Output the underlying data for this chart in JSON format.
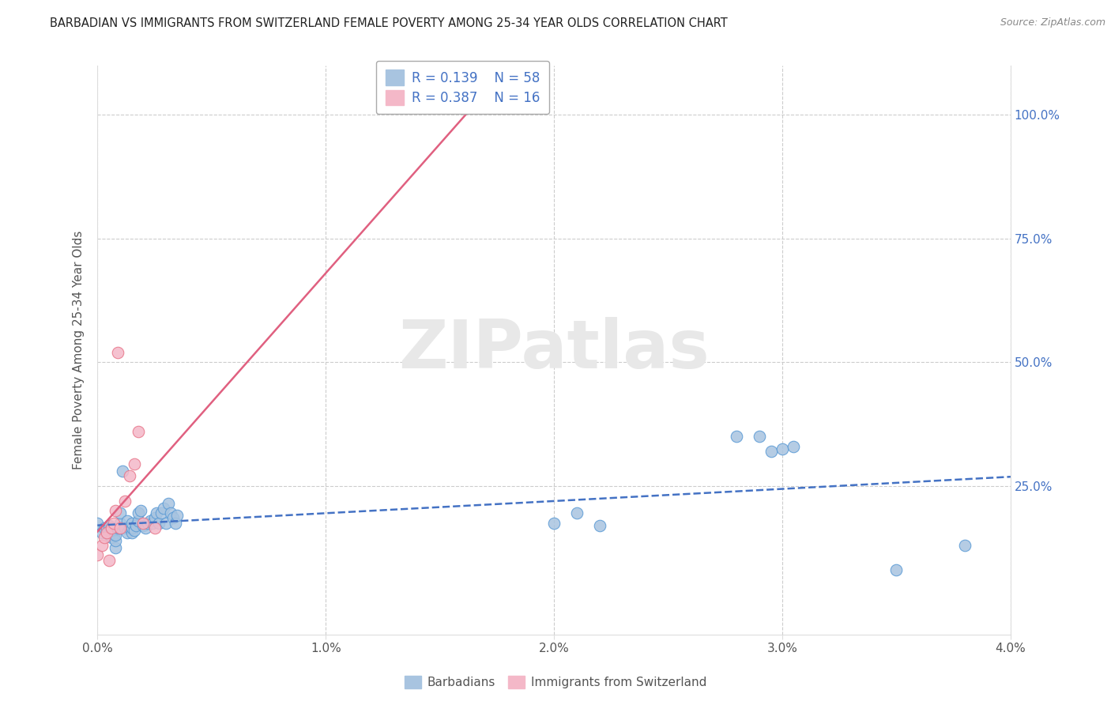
{
  "title": "BARBADIAN VS IMMIGRANTS FROM SWITZERLAND FEMALE POVERTY AMONG 25-34 YEAR OLDS CORRELATION CHART",
  "source": "Source: ZipAtlas.com",
  "ylabel": "Female Poverty Among 25-34 Year Olds",
  "xlim": [
    0.0,
    0.04
  ],
  "ylim": [
    -0.05,
    1.1
  ],
  "xtick_labels": [
    "0.0%",
    "1.0%",
    "2.0%",
    "3.0%",
    "4.0%"
  ],
  "xtick_vals": [
    0.0,
    0.01,
    0.02,
    0.03,
    0.04
  ],
  "ytick_labels": [
    "25.0%",
    "50.0%",
    "75.0%",
    "100.0%"
  ],
  "ytick_vals": [
    0.25,
    0.5,
    0.75,
    1.0
  ],
  "barbadian_color": "#a8c4e0",
  "barbadian_color_dark": "#5b9bd5",
  "swiss_color": "#f4b8c8",
  "swiss_color_dark": "#e8768a",
  "trend_color_blue": "#4472c4",
  "trend_color_pink": "#e06080",
  "legend_r1": "0.139",
  "legend_n1": "58",
  "legend_r2": "0.387",
  "legend_n2": "16",
  "barbadian_x": [
    0.0,
    0.0002,
    0.0003,
    0.0004,
    0.0004,
    0.0005,
    0.0005,
    0.0005,
    0.0006,
    0.0006,
    0.0007,
    0.0007,
    0.0008,
    0.0008,
    0.0008,
    0.0009,
    0.001,
    0.001,
    0.001,
    0.0011,
    0.0012,
    0.0013,
    0.0013,
    0.0014,
    0.0015,
    0.0015,
    0.0015,
    0.0016,
    0.0017,
    0.0018,
    0.0018,
    0.0019,
    0.002,
    0.0021,
    0.0022,
    0.0023,
    0.0024,
    0.0025,
    0.0026,
    0.0027,
    0.0028,
    0.0029,
    0.003,
    0.0031,
    0.0032,
    0.0033,
    0.0034,
    0.0035,
    0.02,
    0.021,
    0.022,
    0.028,
    0.029,
    0.0295,
    0.03,
    0.0305,
    0.035,
    0.038
  ],
  "barbadian_y": [
    0.175,
    0.155,
    0.165,
    0.155,
    0.165,
    0.15,
    0.16,
    0.17,
    0.145,
    0.165,
    0.15,
    0.16,
    0.125,
    0.14,
    0.15,
    0.165,
    0.165,
    0.175,
    0.195,
    0.28,
    0.165,
    0.155,
    0.18,
    0.165,
    0.155,
    0.165,
    0.175,
    0.16,
    0.17,
    0.18,
    0.195,
    0.2,
    0.17,
    0.165,
    0.175,
    0.18,
    0.175,
    0.185,
    0.195,
    0.175,
    0.195,
    0.205,
    0.175,
    0.215,
    0.195,
    0.185,
    0.175,
    0.19,
    0.175,
    0.195,
    0.17,
    0.35,
    0.35,
    0.32,
    0.325,
    0.33,
    0.08,
    0.13
  ],
  "swiss_x": [
    0.0,
    0.0002,
    0.0003,
    0.0004,
    0.0005,
    0.0006,
    0.0007,
    0.0008,
    0.0009,
    0.001,
    0.0012,
    0.0014,
    0.0016,
    0.0018,
    0.002,
    0.0025
  ],
  "swiss_y": [
    0.11,
    0.13,
    0.145,
    0.155,
    0.1,
    0.165,
    0.175,
    0.2,
    0.52,
    0.165,
    0.22,
    0.27,
    0.295,
    0.36,
    0.175,
    0.165
  ],
  "background_color": "#ffffff",
  "grid_color": "#cccccc",
  "watermark_text": "ZIPatlas",
  "watermark_color": "#e8e8e8"
}
